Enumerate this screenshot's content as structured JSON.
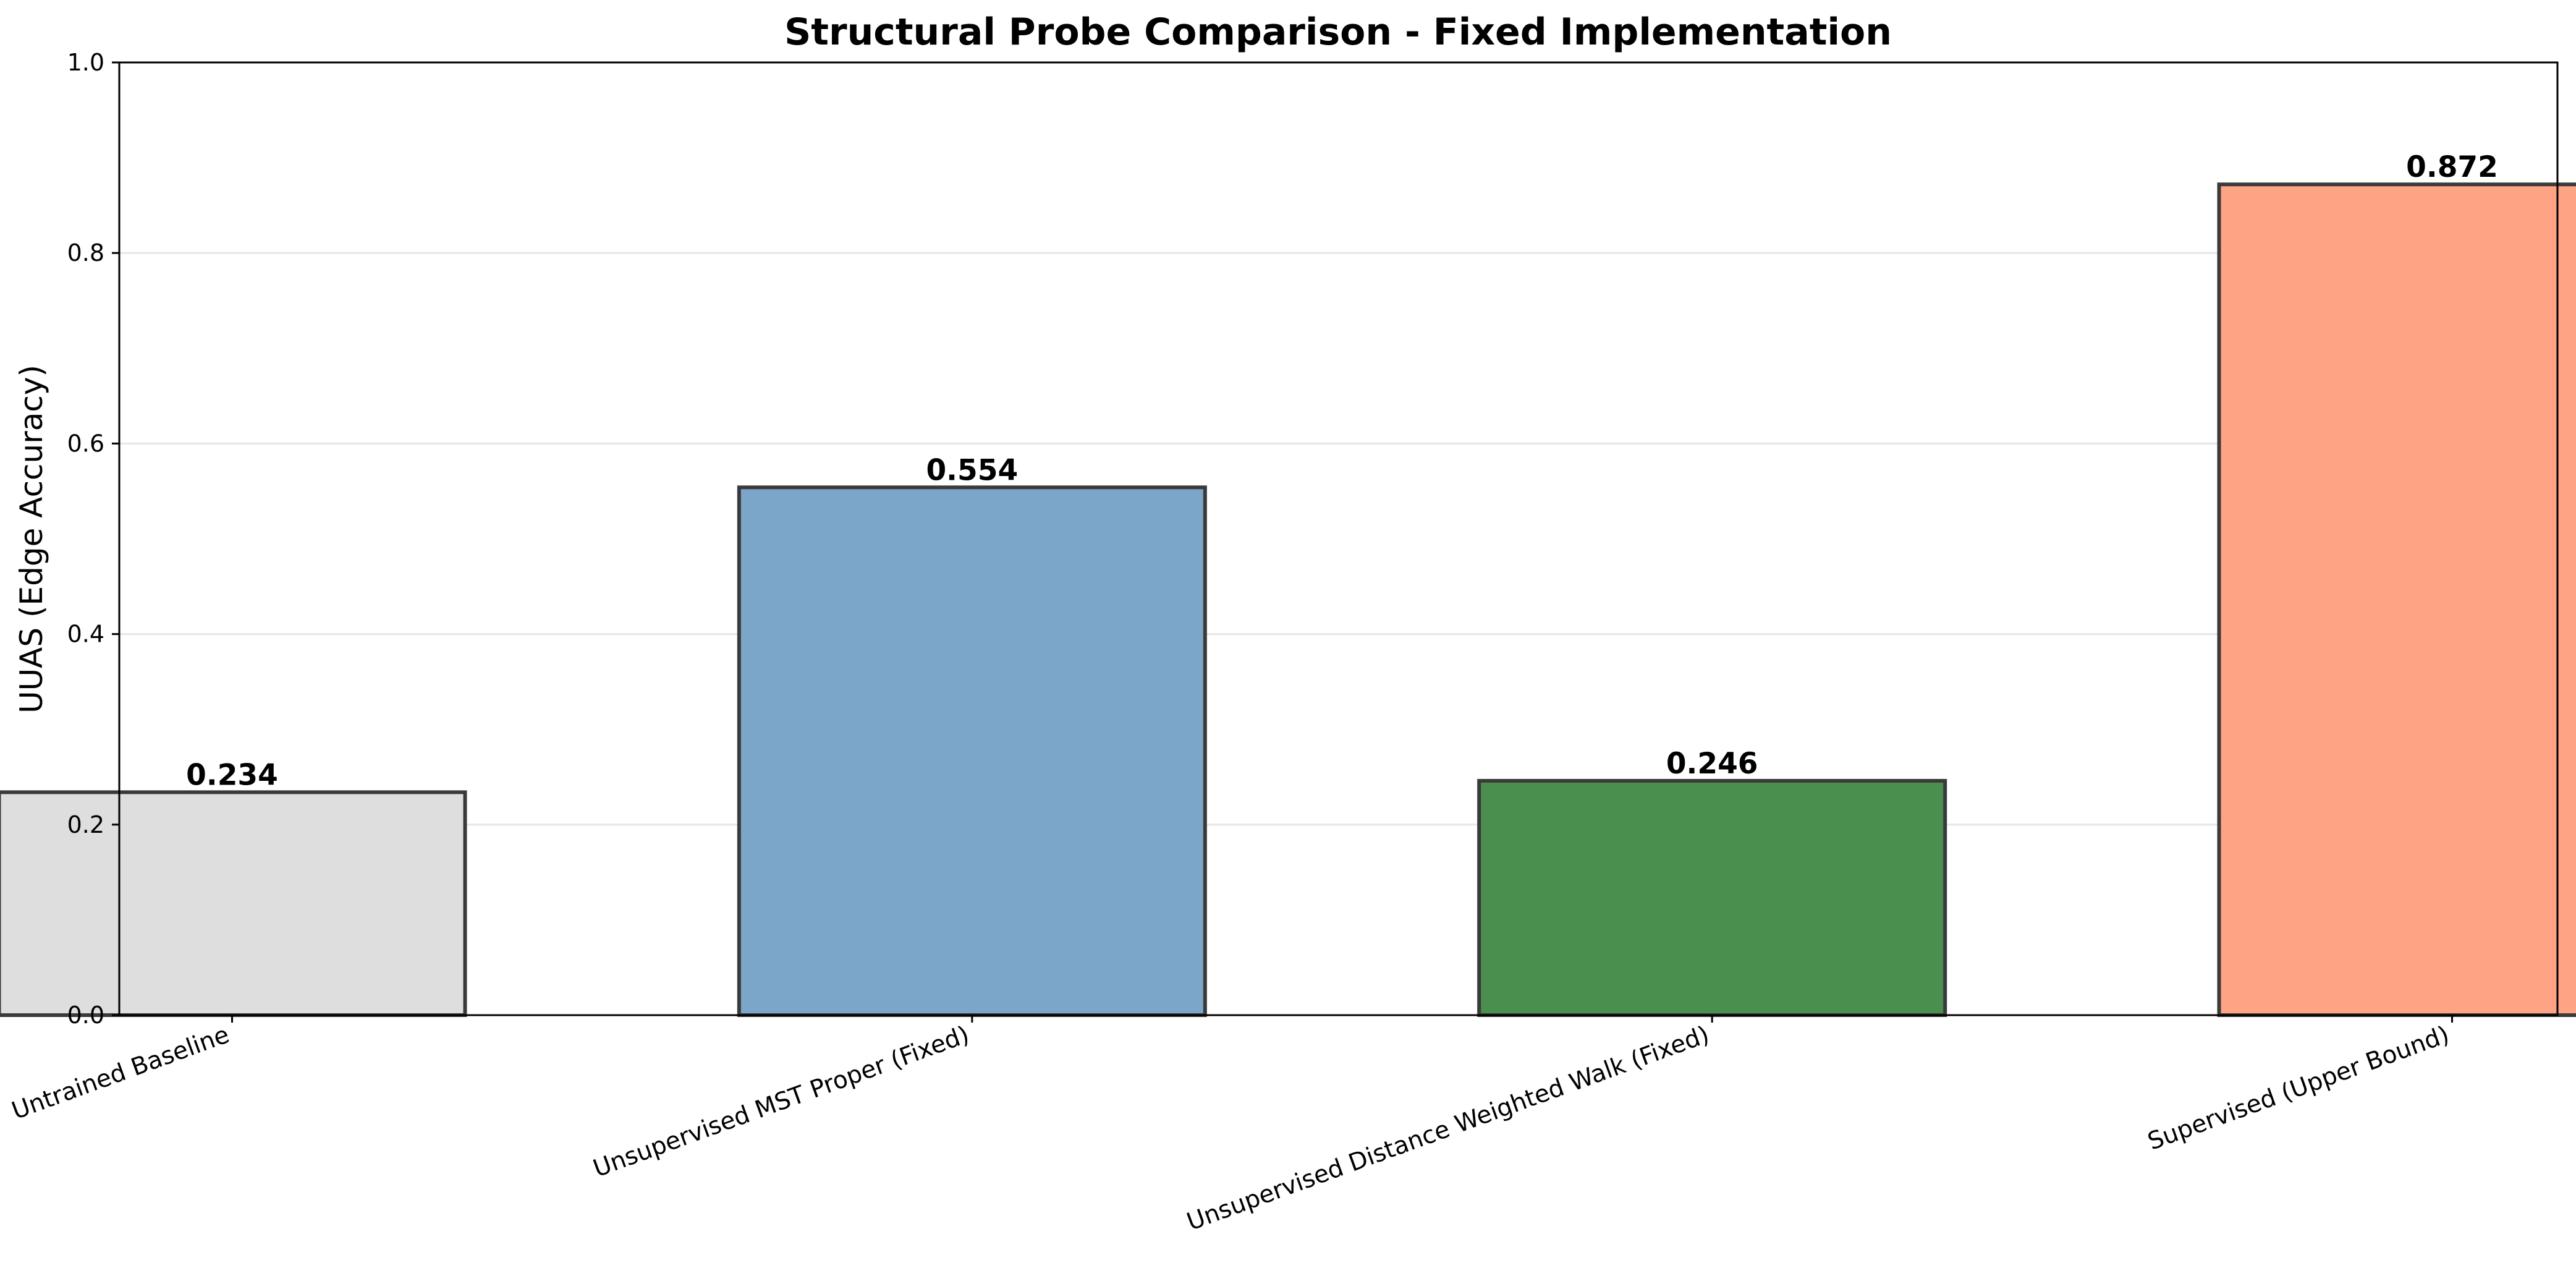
{
  "chart_data": {
    "type": "bar",
    "title": "Structural Probe Comparison - Fixed Implementation",
    "xlabel": "",
    "ylabel": "UUAS (Edge Accuracy)",
    "ylim": [
      0,
      1.0
    ],
    "yticks": [
      0.0,
      0.2,
      0.4,
      0.6,
      0.8,
      1.0
    ],
    "ytick_labels": [
      "0.0",
      "0.2",
      "0.4",
      "0.6",
      "0.8",
      "1.0"
    ],
    "grid": "horizontal",
    "categories": [
      "Untrained Baseline",
      "Unsupervised MST Proper (Fixed)",
      "Unsupervised Distance Weighted Walk (Fixed)",
      "Supervised (Upper Bound)"
    ],
    "values": [
      0.234,
      0.554,
      0.246,
      0.872
    ],
    "value_labels": [
      "0.234",
      "0.554",
      "0.246",
      "0.872"
    ],
    "colors": [
      "#dedede",
      "#7ba6c9",
      "#4a8f4d",
      "#fea484"
    ]
  }
}
